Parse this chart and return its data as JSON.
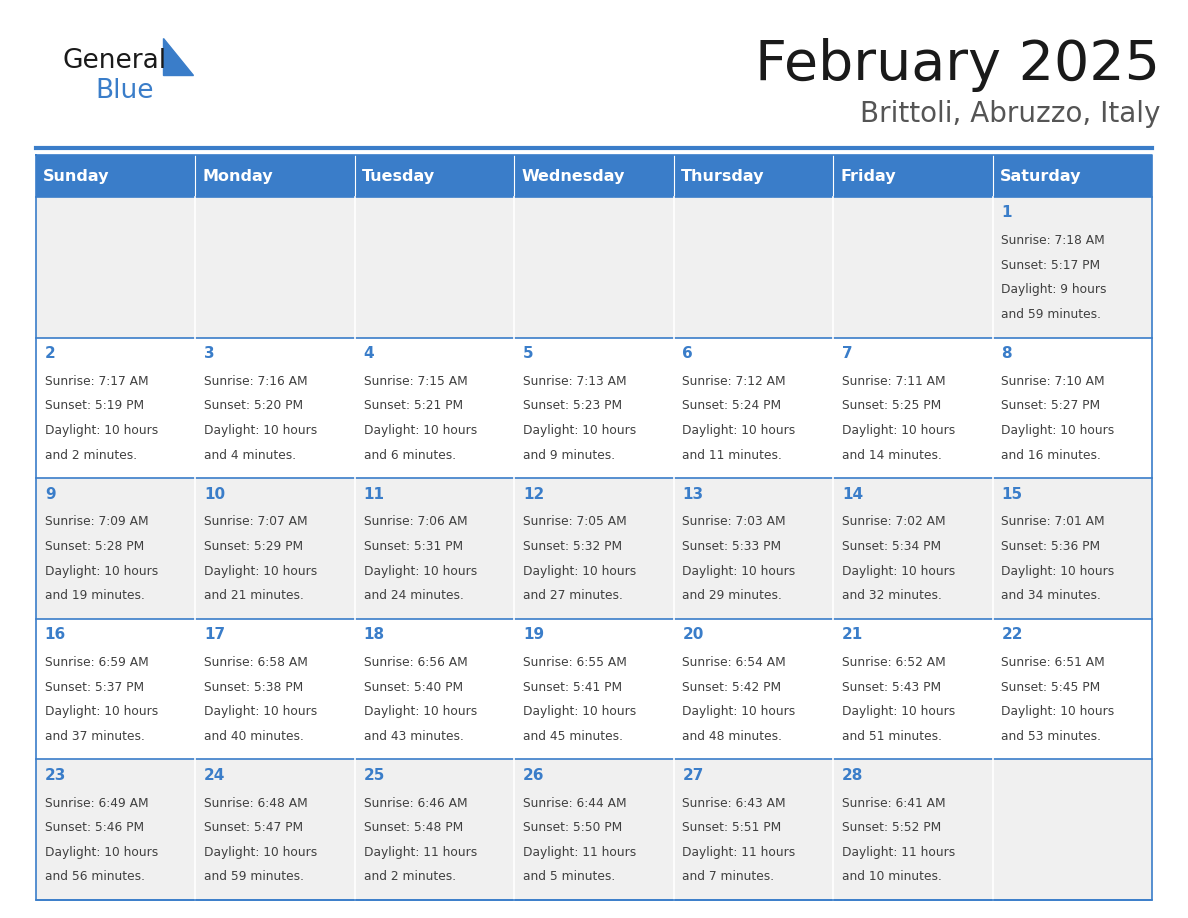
{
  "title": "February 2025",
  "subtitle": "Brittoli, Abruzzo, Italy",
  "header_bg": "#3A7DC9",
  "header_text_color": "#FFFFFF",
  "weekdays": [
    "Sunday",
    "Monday",
    "Tuesday",
    "Wednesday",
    "Thursday",
    "Friday",
    "Saturday"
  ],
  "row_bg_odd": "#F0F0F0",
  "row_bg_even": "#FFFFFF",
  "day_number_color": "#3A7DC9",
  "info_text_color": "#404040",
  "title_color": "#1A1A1A",
  "subtitle_color": "#555555",
  "logo_general_color": "#1A1A1A",
  "logo_blue_color": "#3A7DC9",
  "days": [
    {
      "day": 1,
      "col": 6,
      "row": 0,
      "sunrise": "7:18 AM",
      "sunset": "5:17 PM",
      "daylight": "9 hours and 59 minutes."
    },
    {
      "day": 2,
      "col": 0,
      "row": 1,
      "sunrise": "7:17 AM",
      "sunset": "5:19 PM",
      "daylight": "10 hours and 2 minutes."
    },
    {
      "day": 3,
      "col": 1,
      "row": 1,
      "sunrise": "7:16 AM",
      "sunset": "5:20 PM",
      "daylight": "10 hours and 4 minutes."
    },
    {
      "day": 4,
      "col": 2,
      "row": 1,
      "sunrise": "7:15 AM",
      "sunset": "5:21 PM",
      "daylight": "10 hours and 6 minutes."
    },
    {
      "day": 5,
      "col": 3,
      "row": 1,
      "sunrise": "7:13 AM",
      "sunset": "5:23 PM",
      "daylight": "10 hours and 9 minutes."
    },
    {
      "day": 6,
      "col": 4,
      "row": 1,
      "sunrise": "7:12 AM",
      "sunset": "5:24 PM",
      "daylight": "10 hours and 11 minutes."
    },
    {
      "day": 7,
      "col": 5,
      "row": 1,
      "sunrise": "7:11 AM",
      "sunset": "5:25 PM",
      "daylight": "10 hours and 14 minutes."
    },
    {
      "day": 8,
      "col": 6,
      "row": 1,
      "sunrise": "7:10 AM",
      "sunset": "5:27 PM",
      "daylight": "10 hours and 16 minutes."
    },
    {
      "day": 9,
      "col": 0,
      "row": 2,
      "sunrise": "7:09 AM",
      "sunset": "5:28 PM",
      "daylight": "10 hours and 19 minutes."
    },
    {
      "day": 10,
      "col": 1,
      "row": 2,
      "sunrise": "7:07 AM",
      "sunset": "5:29 PM",
      "daylight": "10 hours and 21 minutes."
    },
    {
      "day": 11,
      "col": 2,
      "row": 2,
      "sunrise": "7:06 AM",
      "sunset": "5:31 PM",
      "daylight": "10 hours and 24 minutes."
    },
    {
      "day": 12,
      "col": 3,
      "row": 2,
      "sunrise": "7:05 AM",
      "sunset": "5:32 PM",
      "daylight": "10 hours and 27 minutes."
    },
    {
      "day": 13,
      "col": 4,
      "row": 2,
      "sunrise": "7:03 AM",
      "sunset": "5:33 PM",
      "daylight": "10 hours and 29 minutes."
    },
    {
      "day": 14,
      "col": 5,
      "row": 2,
      "sunrise": "7:02 AM",
      "sunset": "5:34 PM",
      "daylight": "10 hours and 32 minutes."
    },
    {
      "day": 15,
      "col": 6,
      "row": 2,
      "sunrise": "7:01 AM",
      "sunset": "5:36 PM",
      "daylight": "10 hours and 34 minutes."
    },
    {
      "day": 16,
      "col": 0,
      "row": 3,
      "sunrise": "6:59 AM",
      "sunset": "5:37 PM",
      "daylight": "10 hours and 37 minutes."
    },
    {
      "day": 17,
      "col": 1,
      "row": 3,
      "sunrise": "6:58 AM",
      "sunset": "5:38 PM",
      "daylight": "10 hours and 40 minutes."
    },
    {
      "day": 18,
      "col": 2,
      "row": 3,
      "sunrise": "6:56 AM",
      "sunset": "5:40 PM",
      "daylight": "10 hours and 43 minutes."
    },
    {
      "day": 19,
      "col": 3,
      "row": 3,
      "sunrise": "6:55 AM",
      "sunset": "5:41 PM",
      "daylight": "10 hours and 45 minutes."
    },
    {
      "day": 20,
      "col": 4,
      "row": 3,
      "sunrise": "6:54 AM",
      "sunset": "5:42 PM",
      "daylight": "10 hours and 48 minutes."
    },
    {
      "day": 21,
      "col": 5,
      "row": 3,
      "sunrise": "6:52 AM",
      "sunset": "5:43 PM",
      "daylight": "10 hours and 51 minutes."
    },
    {
      "day": 22,
      "col": 6,
      "row": 3,
      "sunrise": "6:51 AM",
      "sunset": "5:45 PM",
      "daylight": "10 hours and 53 minutes."
    },
    {
      "day": 23,
      "col": 0,
      "row": 4,
      "sunrise": "6:49 AM",
      "sunset": "5:46 PM",
      "daylight": "10 hours and 56 minutes."
    },
    {
      "day": 24,
      "col": 1,
      "row": 4,
      "sunrise": "6:48 AM",
      "sunset": "5:47 PM",
      "daylight": "10 hours and 59 minutes."
    },
    {
      "day": 25,
      "col": 2,
      "row": 4,
      "sunrise": "6:46 AM",
      "sunset": "5:48 PM",
      "daylight": "11 hours and 2 minutes."
    },
    {
      "day": 26,
      "col": 3,
      "row": 4,
      "sunrise": "6:44 AM",
      "sunset": "5:50 PM",
      "daylight": "11 hours and 5 minutes."
    },
    {
      "day": 27,
      "col": 4,
      "row": 4,
      "sunrise": "6:43 AM",
      "sunset": "5:51 PM",
      "daylight": "11 hours and 7 minutes."
    },
    {
      "day": 28,
      "col": 5,
      "row": 4,
      "sunrise": "6:41 AM",
      "sunset": "5:52 PM",
      "daylight": "11 hours and 10 minutes."
    }
  ],
  "num_rows": 5,
  "num_cols": 7
}
